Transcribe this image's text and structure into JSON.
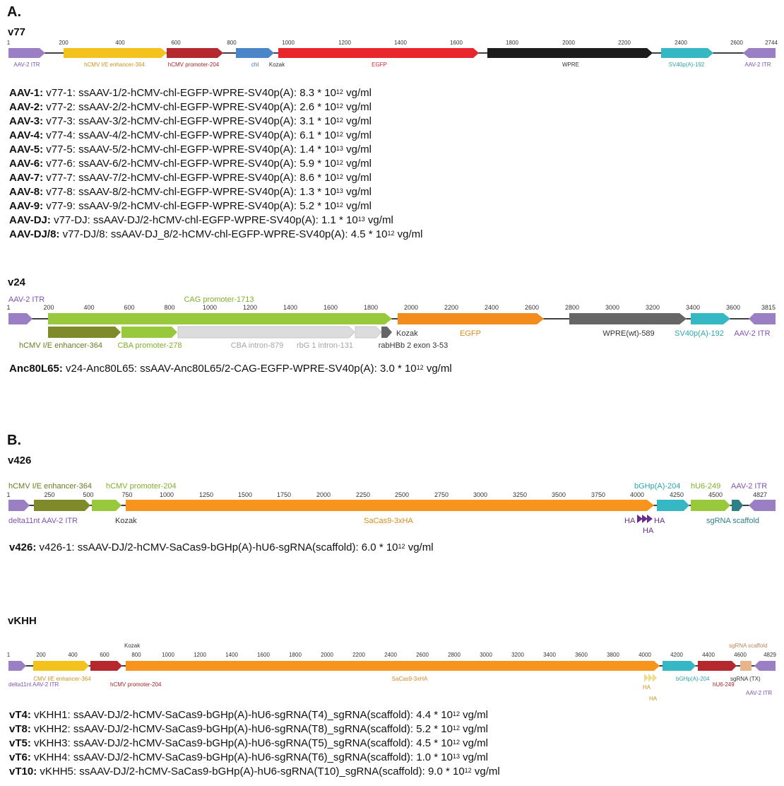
{
  "colors": {
    "itr": "#9b7fc4",
    "enhancer_yellow": "#f4c21c",
    "promoter_red": "#b5282d",
    "chl_blue": "#4a86c8",
    "egfp_red": "#e8262b",
    "wpre_black": "#1c1c1c",
    "sv40_teal": "#35b8c4",
    "cag_green": "#98c93c",
    "enhancer_olive": "#7f8b2b",
    "intron_gray": "#dcdcdc",
    "egfp_orange": "#f28c1c",
    "wpre_gray": "#666666",
    "saCas9_orange": "#f7941d",
    "ha_purple": "#6a2d8c",
    "scaffold_teal": "#2f7f86",
    "sgrna_tan": "#e8b48c",
    "label_purple": "#7f52b2",
    "label_gold": "#c7941b",
    "label_darkred": "#a3262b",
    "label_blue": "#3b6fb6",
    "label_red": "#e8262b",
    "label_green": "#7fae2c",
    "label_olive": "#6b7a22",
    "label_gray": "#a5a5a5",
    "label_orange": "#d98a1e",
    "label_teal": "#2ba4ad"
  },
  "panelA": {
    "label": "A.",
    "v77": {
      "name": "v77",
      "ticks": [
        "1",
        "200",
        "400",
        "600",
        "800",
        "1000",
        "1200",
        "1400",
        "1600",
        "1800",
        "2000",
        "2200",
        "2400",
        "2600",
        "2744"
      ],
      "features": [
        "AAV-2 ITR",
        "hCMV I/E enhancer-364",
        "hCMV promoter-204",
        "chl",
        "Kozak",
        "EGFP",
        "WPRE",
        "SV40p(A)-192",
        "AAV-2 ITR"
      ],
      "lines": [
        {
          "serotype": "AAV-1:",
          "text": " v77-1:  ssAAV-1/2-hCMV-chl-EGFP-WPRE-SV40p(A): 8.3 * 10",
          "exp": "12",
          "unit": " vg/ml"
        },
        {
          "serotype": "AAV-2:",
          "text": " v77-2:  ssAAV-2/2-hCMV-chl-EGFP-WPRE-SV40p(A): 2.6 * 10",
          "exp": "12",
          "unit": " vg/ml"
        },
        {
          "serotype": "AAV-3:",
          "text": " v77-3: ssAAV-3/2-hCMV-chl-EGFP-WPRE-SV40p(A): 3.1 * 10",
          "exp": "12",
          "unit": " vg/ml"
        },
        {
          "serotype": "AAV-4:",
          "text": " v77-4:  ssAAV-4/2-hCMV-chl-EGFP-WPRE-SV40p(A): 6.1 * 10",
          "exp": "12",
          "unit": " vg/ml"
        },
        {
          "serotype": "AAV-5:",
          "text": " v77-5:  ssAAV-5/2-hCMV-chl-EGFP-WPRE-SV40p(A): 1.4 * 10",
          "exp": "13",
          "unit": " vg/ml"
        },
        {
          "serotype": "AAV-6:",
          "text": " v77-6:  ssAAV-6/2-hCMV-chl-EGFP-WPRE-SV40p(A): 5.9 * 10",
          "exp": "12",
          "unit": " vg/ml"
        },
        {
          "serotype": "AAV-7:",
          "text": " v77-7:  ssAAV-7/2-hCMV-chl-EGFP-WPRE-SV40p(A): 8.6 * 10",
          "exp": "12",
          "unit": " vg/ml"
        },
        {
          "serotype": "AAV-8:",
          "text": " v77-8:  ssAAV-8/2-hCMV-chl-EGFP-WPRE-SV40p(A): 1.3 * 10",
          "exp": "13",
          "unit": " vg/ml"
        },
        {
          "serotype": "AAV-9:",
          "text": " v77-9:  ssAAV-9/2-hCMV-chl-EGFP-WPRE-SV40p(A): 5.2 * 10",
          "exp": "12",
          "unit": " vg/ml"
        },
        {
          "serotype": "AAV-DJ:",
          "text": " v77-DJ:  ssAAV-DJ/2-hCMV-chl-EGFP-WPRE-SV40p(A): 1.1 * 10",
          "exp": "13",
          "unit": " vg/ml"
        },
        {
          "serotype": "AAV-DJ/8:",
          "text": " v77-DJ/8:  ssAAV-DJ_8/2-hCMV-chl-EGFP-WPRE-SV40p(A): 4.5 * 10",
          "exp": "12",
          "unit": " vg/ml"
        }
      ]
    },
    "v24": {
      "name": "v24",
      "ticks": [
        "1",
        "200",
        "400",
        "600",
        "800",
        "1000",
        "1200",
        "1400",
        "1600",
        "1800",
        "2000",
        "2200",
        "2400",
        "2600",
        "2800",
        "3000",
        "3200",
        "3400",
        "3600",
        "3815"
      ],
      "features": [
        "AAV-2 ITR",
        "CAG promoter-1713",
        "hCMV I/E enhancer-364",
        "CBA promoter-278",
        "CBA intron-879",
        "rbG 1 intron-131",
        "rabHBb 2 exon 3-53",
        "Kozak",
        "EGFP",
        "WPRE(wt)-589",
        "SV40p(A)-192",
        "AAV-2 ITR"
      ],
      "lines": [
        {
          "serotype": "Anc80L65:",
          "text": " v24-Anc80L65:  ssAAV-Anc80L65/2-CAG-EGFP-WPRE-SV40p(A): 3.0 * 10",
          "exp": "12",
          "unit": " vg/ml"
        }
      ]
    }
  },
  "panelB": {
    "label": "B.",
    "v426": {
      "name": "v426",
      "ticks": [
        "1",
        "250",
        "500",
        "750",
        "1000",
        "1250",
        "1500",
        "1750",
        "2000",
        "2250",
        "2500",
        "2750",
        "3000",
        "3250",
        "3500",
        "3750",
        "4000",
        "4250",
        "4500",
        "4827"
      ],
      "features": [
        "hCMV I/E enhancer-364",
        "hCMV promoter-204",
        "bGHp(A)-204",
        "hU6-249",
        "AAV-2 ITR",
        "delta11nt AAV-2 ITR",
        "Kozak",
        "SaCas9-3xHA",
        "HA",
        "HA",
        "HA",
        "sgRNA scaffold"
      ],
      "lines": [
        {
          "serotype": "v426:",
          "text": " v426-1:  ssAAV-DJ/2-hCMV-SaCas9-bGHp(A)-hU6-sgRNA(scaffold): 6.0 * 10",
          "exp": "12",
          "unit": " vg/ml"
        }
      ]
    },
    "vKHH": {
      "name": "vKHH",
      "ticks": [
        "1",
        "200",
        "400",
        "600",
        "800",
        "1000",
        "1200",
        "1400",
        "1600",
        "1800",
        "2000",
        "2200",
        "2400",
        "2600",
        "2800",
        "3000",
        "3200",
        "3400",
        "3600",
        "3800",
        "4000",
        "4200",
        "4400",
        "4600",
        "4829"
      ],
      "features": [
        "Kozak",
        "sgRNA scaffold",
        "delta11nt AAV-2 ITR",
        "CMV I/E enhancer-364",
        "hCMV promoter-204",
        "SaCas9-3xHA",
        "HA",
        "HA",
        "bGHp(A)-204",
        "hU6-249",
        "sgRNA (TX)",
        "AAV-2 ITR"
      ],
      "lines": [
        {
          "serotype": "vT4:",
          "text": " vKHH1: ssAAV-DJ/2-hCMV-SaCas9-bGHp(A)-hU6-sgRNA(T4)_sgRNA(scaffold): 4.4 * 10",
          "exp": "12",
          "unit": " vg/ml"
        },
        {
          "serotype": "vT8:",
          "text": " vKHH2: ssAAV-DJ/2-hCMV-SaCas9-bGHp(A)-hU6-sgRNA(T8)_sgRNA(scaffold): 5.2 * 10",
          "exp": "12",
          "unit": " vg/ml"
        },
        {
          "serotype": "vT5:",
          "text": " vKHH3: ssAAV-DJ/2-hCMV-SaCas9-bGHp(A)-hU6-sgRNA(T5)_sgRNA(scaffold): 4.5 * 10",
          "exp": "12",
          "unit": " vg/ml"
        },
        {
          "serotype": "vT6:",
          "text": " vKHH4: ssAAV-DJ/2-hCMV-SaCas9-bGHp(A)-hU6-sgRNA(T6)_sgRNA(scaffold): 1.0 * 10",
          "exp": "13",
          "unit": " vg/ml"
        },
        {
          "serotype": "vT10:",
          "text": " vKHH5: ssAAV-DJ/2-hCMV-SaCas9-bGHp(A)-hU6-sgRNA(T10)_sgRNA(scaffold): 9.0 * 10",
          "exp": "12",
          "unit": " vg/ml"
        }
      ]
    }
  }
}
